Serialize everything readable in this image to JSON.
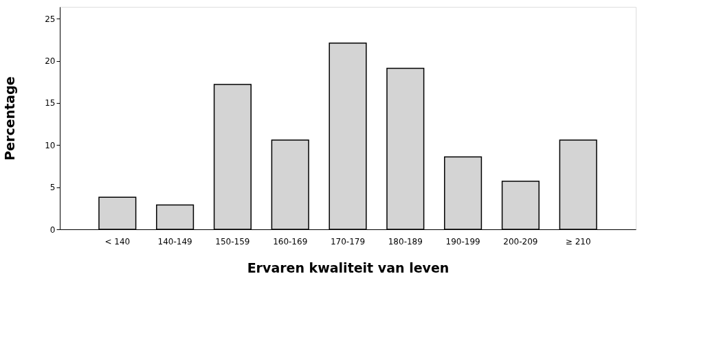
{
  "chart_data": {
    "type": "bar",
    "xlabel": "Ervaren kwaliteit van leven",
    "ylabel": "Percentage",
    "categories": [
      "< 140",
      "140-149",
      "150-159",
      "160-169",
      "170-179",
      "180-189",
      "190-199",
      "200-209",
      "≥ 210"
    ],
    "values": [
      3.8,
      2.9,
      17.2,
      10.6,
      22.1,
      19.1,
      8.6,
      5.7,
      10.6
    ],
    "color": "#d4d4d4",
    "ylim": [
      0,
      26.4
    ],
    "yticks": [
      0,
      5,
      10,
      15,
      20,
      25
    ],
    "grid": false
  }
}
